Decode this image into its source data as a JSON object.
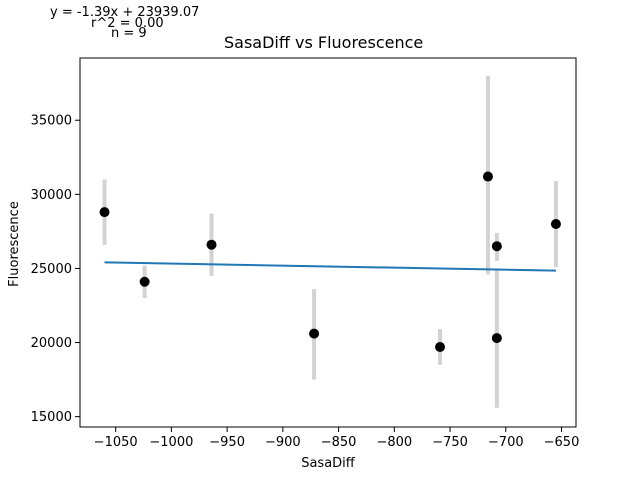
{
  "annotations": {
    "equation": "y = -1.39x + 23939.07",
    "r_squared": "r^2 = 0.00",
    "n": "n = 9"
  },
  "chart_data": {
    "type": "scatter",
    "title": "SasaDiff vs Fluorescence",
    "xlabel": "SasaDiff",
    "ylabel": "Fluorescence",
    "xlim": [
      -1082,
      -637
    ],
    "ylim": [
      14300,
      39200
    ],
    "xticks": [
      -1050,
      -1000,
      -950,
      -900,
      -850,
      -800,
      -750,
      -700,
      -650
    ],
    "yticks": [
      15000,
      20000,
      25000,
      30000,
      35000
    ],
    "grid": false,
    "point_color": "#000000",
    "errorbar_color": "#d3d3d3",
    "fit_color": "#1f77b4",
    "points": [
      {
        "x": -1060,
        "y": 28800,
        "ylow": 26600,
        "yhigh": 31000
      },
      {
        "x": -1024,
        "y": 24100,
        "ylow": 23000,
        "yhigh": 25200
      },
      {
        "x": -964,
        "y": 26600,
        "ylow": 24500,
        "yhigh": 28700
      },
      {
        "x": -872,
        "y": 20600,
        "ylow": 17500,
        "yhigh": 23600
      },
      {
        "x": -759,
        "y": 19700,
        "ylow": 18500,
        "yhigh": 20900
      },
      {
        "x": -716,
        "y": 31200,
        "ylow": 24600,
        "yhigh": 38000
      },
      {
        "x": -708,
        "y": 26500,
        "ylow": 25500,
        "yhigh": 27400
      },
      {
        "x": -708,
        "y": 20300,
        "ylow": 15600,
        "yhigh": 25000
      },
      {
        "x": -655,
        "y": 28000,
        "ylow": 25100,
        "yhigh": 30900
      }
    ],
    "fit": {
      "slope": -1.39,
      "intercept": 23939.07,
      "x_range": [
        -1060,
        -655
      ]
    }
  }
}
